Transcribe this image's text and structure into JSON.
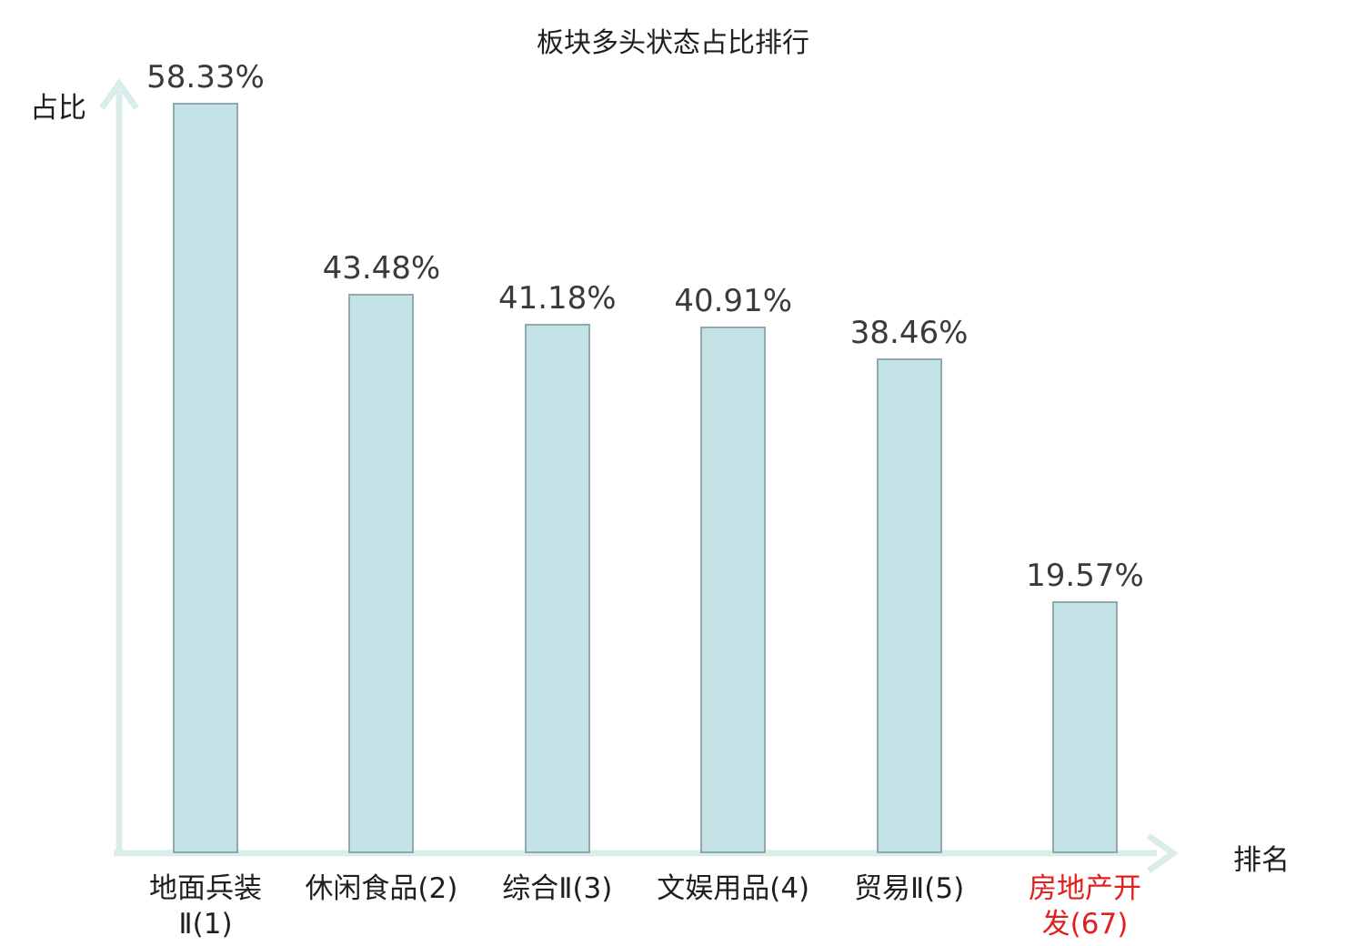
{
  "title": "板块多头状态占比排行",
  "chart_data": {
    "type": "bar",
    "title": "板块多头状态占比排行",
    "xlabel": "排名",
    "ylabel": "占比",
    "categories": [
      "地面兵装Ⅱ(1)",
      "休闲食品(2)",
      "综合Ⅱ(3)",
      "文娱用品(4)",
      "贸易Ⅱ(5)",
      "房地产开发(67)"
    ],
    "category_display": [
      "地面兵装\nⅡ(1)",
      "休闲食品(2)",
      "综合Ⅱ(3)",
      "文娱用品(4)",
      "贸易Ⅱ(5)",
      "房地产开\n发(67)"
    ],
    "values": [
      58.33,
      43.48,
      41.18,
      40.91,
      38.46,
      19.57
    ],
    "value_labels": [
      "58.33%",
      "43.48%",
      "41.18%",
      "40.91%",
      "38.46%",
      "19.57%"
    ],
    "highlight_index": 5,
    "ylim": [
      0,
      60
    ],
    "grid": false,
    "legend_position": "none",
    "colors": {
      "bar_fill": "#c3e2e6",
      "bar_border": "#8fa9ae",
      "axis": "#daedea",
      "text": "#1f1f1f",
      "value_text": "#3a3a3a",
      "highlight_text": "#e02020"
    }
  }
}
